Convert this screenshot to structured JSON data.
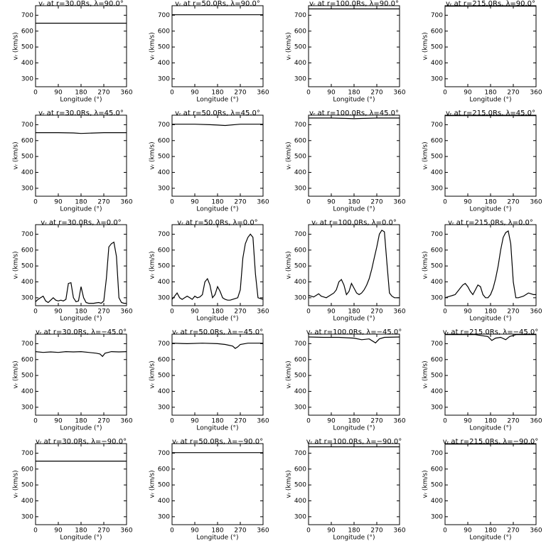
{
  "chart_data": [
    {
      "type": "line",
      "title": "vᵣ at r=30.0Rs, λ=90.0°",
      "xlabel": "Longitude (°)",
      "ylabel": "vᵣ (km/s)",
      "x": [
        0,
        360
      ],
      "values": [
        650,
        650
      ],
      "xlim": [
        0,
        360
      ],
      "ylim": [
        250,
        760
      ],
      "xticks": [
        0,
        90,
        180,
        270,
        360
      ],
      "yticks": [
        300,
        400,
        500,
        600,
        700
      ],
      "color": "#000000"
    },
    {
      "type": "line",
      "title": "vᵣ at r=50.0Rs, λ=90.0°",
      "xlabel": "Longitude (°)",
      "ylabel": "vᵣ (km/s)",
      "x": [
        0,
        360
      ],
      "values": [
        703,
        703
      ],
      "xlim": [
        0,
        360
      ],
      "ylim": [
        250,
        760
      ],
      "xticks": [
        0,
        90,
        180,
        270,
        360
      ],
      "yticks": [
        300,
        400,
        500,
        600,
        700
      ],
      "color": "#000000"
    },
    {
      "type": "line",
      "title": "vᵣ at r=100.0Rs, λ=90.0°",
      "xlabel": "Longitude (°)",
      "ylabel": "vᵣ (km/s)",
      "x": [
        0,
        360
      ],
      "values": [
        740,
        740
      ],
      "xlim": [
        0,
        360
      ],
      "ylim": [
        250,
        760
      ],
      "xticks": [
        0,
        90,
        180,
        270,
        360
      ],
      "yticks": [
        300,
        400,
        500,
        600,
        700
      ],
      "color": "#000000"
    },
    {
      "type": "line",
      "title": "vᵣ at r=215.0Rs, λ=90.0°",
      "xlabel": "Longitude (°)",
      "ylabel": "vᵣ (km/s)",
      "x": [
        0,
        360
      ],
      "values": [
        757,
        757
      ],
      "xlim": [
        0,
        360
      ],
      "ylim": [
        250,
        760
      ],
      "xticks": [
        0,
        90,
        180,
        270,
        360
      ],
      "yticks": [
        300,
        400,
        500,
        600,
        700
      ],
      "color": "#000000"
    },
    {
      "type": "line",
      "title": "vᵣ at r=30.0Rs, λ=45.0°",
      "xlabel": "Longitude (°)",
      "ylabel": "vᵣ (km/s)",
      "x": [
        0,
        90,
        150,
        180,
        210,
        270,
        360
      ],
      "values": [
        650,
        650,
        648,
        645,
        647,
        650,
        650
      ],
      "xlim": [
        0,
        360
      ],
      "ylim": [
        250,
        760
      ],
      "xticks": [
        0,
        90,
        180,
        270,
        360
      ],
      "yticks": [
        300,
        400,
        500,
        600,
        700
      ],
      "color": "#000000"
    },
    {
      "type": "line",
      "title": "vᵣ at r=50.0Rs, λ=45.0°",
      "xlabel": "Longitude (°)",
      "ylabel": "vᵣ (km/s)",
      "x": [
        0,
        90,
        150,
        180,
        210,
        270,
        360
      ],
      "values": [
        703,
        703,
        700,
        698,
        695,
        703,
        703
      ],
      "xlim": [
        0,
        360
      ],
      "ylim": [
        250,
        760
      ],
      "xticks": [
        0,
        90,
        180,
        270,
        360
      ],
      "yticks": [
        300,
        400,
        500,
        600,
        700
      ],
      "color": "#000000"
    },
    {
      "type": "line",
      "title": "vᵣ at r=100.0Rs, λ=45.0°",
      "xlabel": "Longitude (°)",
      "ylabel": "vᵣ (km/s)",
      "x": [
        0,
        90,
        150,
        180,
        210,
        270,
        360
      ],
      "values": [
        742,
        742,
        740,
        738,
        740,
        742,
        742
      ],
      "xlim": [
        0,
        360
      ],
      "ylim": [
        250,
        760
      ],
      "xticks": [
        0,
        90,
        180,
        270,
        360
      ],
      "yticks": [
        300,
        400,
        500,
        600,
        700
      ],
      "color": "#000000"
    },
    {
      "type": "line",
      "title": "vᵣ at r=215.0Rs, λ=45.0°",
      "xlabel": "Longitude (°)",
      "ylabel": "vᵣ (km/s)",
      "x": [
        0,
        360
      ],
      "values": [
        757,
        757
      ],
      "xlim": [
        0,
        360
      ],
      "ylim": [
        250,
        760
      ],
      "xticks": [
        0,
        90,
        180,
        270,
        360
      ],
      "yticks": [
        300,
        400,
        500,
        600,
        700
      ],
      "color": "#000000"
    },
    {
      "type": "line",
      "title": "vᵣ at r=30.0Rs, λ=0.0°",
      "xlabel": "Longitude (°)",
      "ylabel": "vᵣ (km/s)",
      "x": [
        0,
        10,
        20,
        30,
        40,
        50,
        60,
        70,
        80,
        90,
        100,
        110,
        120,
        130,
        140,
        150,
        160,
        170,
        180,
        190,
        200,
        210,
        220,
        230,
        240,
        250,
        260,
        270,
        280,
        290,
        300,
        310,
        320,
        330,
        340,
        350,
        360
      ],
      "values": [
        275,
        290,
        300,
        310,
        280,
        270,
        285,
        300,
        285,
        280,
        285,
        280,
        290,
        390,
        395,
        300,
        275,
        280,
        370,
        300,
        270,
        265,
        265,
        265,
        268,
        270,
        265,
        280,
        420,
        620,
        640,
        650,
        560,
        300,
        270,
        265,
        265
      ],
      "xlim": [
        0,
        360
      ],
      "ylim": [
        250,
        760
      ],
      "xticks": [
        0,
        90,
        180,
        270,
        360
      ],
      "yticks": [
        300,
        400,
        500,
        600,
        700
      ],
      "color": "#000000"
    },
    {
      "type": "line",
      "title": "vᵣ at r=50.0Rs, λ=0.0°",
      "xlabel": "Longitude (°)",
      "ylabel": "vᵣ (km/s)",
      "x": [
        0,
        10,
        20,
        30,
        40,
        50,
        60,
        70,
        80,
        90,
        100,
        110,
        120,
        130,
        140,
        150,
        160,
        170,
        180,
        190,
        200,
        210,
        220,
        230,
        240,
        250,
        260,
        270,
        280,
        290,
        300,
        310,
        320,
        330,
        340,
        350,
        360
      ],
      "values": [
        290,
        310,
        330,
        300,
        290,
        300,
        310,
        300,
        290,
        310,
        300,
        305,
        320,
        400,
        420,
        380,
        300,
        320,
        370,
        340,
        300,
        290,
        285,
        285,
        290,
        295,
        300,
        350,
        550,
        640,
        680,
        700,
        680,
        450,
        300,
        295,
        290
      ],
      "xlim": [
        0,
        360
      ],
      "ylim": [
        250,
        760
      ],
      "xticks": [
        0,
        90,
        180,
        270,
        360
      ],
      "yticks": [
        300,
        400,
        500,
        600,
        700
      ],
      "color": "#000000"
    },
    {
      "type": "line",
      "title": "vᵣ at r=100.0Rs, λ=0.0°",
      "xlabel": "Longitude (°)",
      "ylabel": "vᵣ (km/s)",
      "x": [
        0,
        10,
        20,
        30,
        40,
        50,
        60,
        70,
        80,
        90,
        100,
        110,
        120,
        130,
        140,
        150,
        160,
        170,
        180,
        190,
        200,
        210,
        220,
        230,
        240,
        250,
        260,
        270,
        280,
        290,
        300,
        310,
        320,
        330,
        340,
        350,
        360
      ],
      "values": [
        315,
        310,
        305,
        315,
        325,
        310,
        305,
        300,
        310,
        320,
        330,
        350,
        400,
        415,
        380,
        320,
        340,
        390,
        360,
        330,
        320,
        330,
        350,
        380,
        420,
        480,
        550,
        620,
        700,
        725,
        715,
        520,
        330,
        310,
        300,
        300,
        300
      ],
      "xlim": [
        0,
        360
      ],
      "ylim": [
        250,
        760
      ],
      "xticks": [
        0,
        90,
        180,
        270,
        360
      ],
      "yticks": [
        300,
        400,
        500,
        600,
        700
      ],
      "color": "#000000"
    },
    {
      "type": "line",
      "title": "vᵣ at r=215.0Rs, λ=0.0°",
      "xlabel": "Longitude (°)",
      "ylabel": "vᵣ (km/s)",
      "x": [
        0,
        10,
        20,
        30,
        40,
        50,
        60,
        70,
        80,
        90,
        100,
        110,
        120,
        130,
        140,
        150,
        160,
        170,
        180,
        190,
        200,
        210,
        220,
        230,
        240,
        250,
        260,
        270,
        280,
        290,
        300,
        310,
        320,
        330,
        340,
        350,
        360
      ],
      "values": [
        300,
        305,
        310,
        315,
        320,
        340,
        360,
        380,
        390,
        370,
        340,
        320,
        350,
        380,
        370,
        320,
        300,
        300,
        320,
        360,
        420,
        500,
        600,
        680,
        710,
        720,
        640,
        400,
        300,
        300,
        305,
        310,
        320,
        330,
        325,
        320,
        320
      ],
      "xlim": [
        0,
        360
      ],
      "ylim": [
        250,
        760
      ],
      "xticks": [
        0,
        90,
        180,
        270,
        360
      ],
      "yticks": [
        300,
        400,
        500,
        600,
        700
      ],
      "color": "#000000"
    },
    {
      "type": "line",
      "title": "vᵣ at r=30.0Rs, λ=−45.0°",
      "xlabel": "Longitude (°)",
      "ylabel": "vᵣ (km/s)",
      "x": [
        0,
        30,
        60,
        90,
        120,
        150,
        180,
        210,
        240,
        255,
        265,
        275,
        300,
        330,
        360
      ],
      "values": [
        650,
        645,
        648,
        645,
        650,
        648,
        650,
        645,
        640,
        635,
        620,
        640,
        650,
        648,
        650
      ],
      "xlim": [
        0,
        360
      ],
      "ylim": [
        250,
        760
      ],
      "xticks": [
        0,
        90,
        180,
        270,
        360
      ],
      "yticks": [
        300,
        400,
        500,
        600,
        700
      ],
      "color": "#000000"
    },
    {
      "type": "line",
      "title": "vᵣ at r=50.0Rs, λ=−45.0°",
      "xlabel": "Longitude (°)",
      "ylabel": "vᵣ (km/s)",
      "x": [
        0,
        60,
        120,
        180,
        210,
        240,
        250,
        260,
        270,
        300,
        360
      ],
      "values": [
        703,
        700,
        703,
        700,
        695,
        685,
        670,
        680,
        695,
        703,
        703
      ],
      "xlim": [
        0,
        360
      ],
      "ylim": [
        250,
        760
      ],
      "xticks": [
        0,
        90,
        180,
        270,
        360
      ],
      "yticks": [
        300,
        400,
        500,
        600,
        700
      ],
      "color": "#000000"
    },
    {
      "type": "line",
      "title": "vᵣ at r=100.0Rs, λ=−45.0°",
      "xlabel": "Longitude (°)",
      "ylabel": "vᵣ (km/s)",
      "x": [
        0,
        60,
        120,
        180,
        210,
        240,
        265,
        280,
        300,
        360
      ],
      "values": [
        742,
        740,
        740,
        735,
        725,
        730,
        705,
        730,
        740,
        742
      ],
      "xlim": [
        0,
        360
      ],
      "ylim": [
        250,
        760
      ],
      "xticks": [
        0,
        90,
        180,
        270,
        360
      ],
      "yticks": [
        300,
        400,
        500,
        600,
        700
      ],
      "color": "#000000"
    },
    {
      "type": "line",
      "title": "vᵣ at r=215.0Rs, λ=−45.0°",
      "xlabel": "Longitude (°)",
      "ylabel": "vᵣ (km/s)",
      "x": [
        0,
        120,
        170,
        185,
        200,
        220,
        240,
        255,
        280,
        360
      ],
      "values": [
        757,
        757,
        745,
        720,
        735,
        740,
        725,
        745,
        757,
        757
      ],
      "xlim": [
        0,
        360
      ],
      "ylim": [
        250,
        760
      ],
      "xticks": [
        0,
        90,
        180,
        270,
        360
      ],
      "yticks": [
        300,
        400,
        500,
        600,
        700
      ],
      "color": "#000000"
    },
    {
      "type": "line",
      "title": "vᵣ at r=30.0Rs, λ=−90.0°",
      "xlabel": "Longitude (°)",
      "ylabel": "vᵣ (km/s)",
      "x": [
        0,
        360
      ],
      "values": [
        650,
        650
      ],
      "xlim": [
        0,
        360
      ],
      "ylim": [
        250,
        760
      ],
      "xticks": [
        0,
        90,
        180,
        270,
        360
      ],
      "yticks": [
        300,
        400,
        500,
        600,
        700
      ],
      "color": "#000000"
    },
    {
      "type": "line",
      "title": "vᵣ at r=50.0Rs, λ=−90.0°",
      "xlabel": "Longitude (°)",
      "ylabel": "vᵣ (km/s)",
      "x": [
        0,
        360
      ],
      "values": [
        703,
        703
      ],
      "xlim": [
        0,
        360
      ],
      "ylim": [
        250,
        760
      ],
      "xticks": [
        0,
        90,
        180,
        270,
        360
      ],
      "yticks": [
        300,
        400,
        500,
        600,
        700
      ],
      "color": "#000000"
    },
    {
      "type": "line",
      "title": "vᵣ at r=100.0Rs, λ=−90.0°",
      "xlabel": "Longitude (°)",
      "ylabel": "vᵣ (km/s)",
      "x": [
        0,
        360
      ],
      "values": [
        740,
        740
      ],
      "xlim": [
        0,
        360
      ],
      "ylim": [
        250,
        760
      ],
      "xticks": [
        0,
        90,
        180,
        270,
        360
      ],
      "yticks": [
        300,
        400,
        500,
        600,
        700
      ],
      "color": "#000000"
    },
    {
      "type": "line",
      "title": "vᵣ at r=215.0Rs, λ=−90.0°",
      "xlabel": "Longitude (°)",
      "ylabel": "vᵣ (km/s)",
      "x": [
        0,
        360
      ],
      "values": [
        757,
        757
      ],
      "xlim": [
        0,
        360
      ],
      "ylim": [
        250,
        760
      ],
      "xticks": [
        0,
        90,
        180,
        270,
        360
      ],
      "yticks": [
        300,
        400,
        500,
        600,
        700
      ],
      "color": "#000000"
    }
  ]
}
